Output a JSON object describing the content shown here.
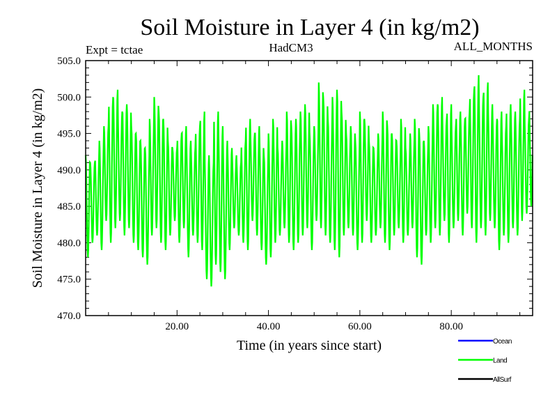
{
  "chart_data": {
    "type": "line",
    "title": "Soil Moisture in Layer 4 (in kg/m2)",
    "subtitle_left": "Expt = tctae",
    "subtitle_center": "HadCM3",
    "subtitle_right": "ALL_MONTHS",
    "xlabel": "Time (in years since start)",
    "ylabel": "Soil Moisture in Layer 4 (in kg/m2)",
    "xlim": [
      0,
      97.8
    ],
    "ylim": [
      470,
      505
    ],
    "x_ticks": [
      20,
      40,
      60,
      80
    ],
    "x_tick_labels": [
      "20.00",
      "40.00",
      "60.00",
      "80.00"
    ],
    "y_ticks": [
      470,
      475,
      480,
      485,
      490,
      495,
      500,
      505
    ],
    "y_tick_labels": [
      "470.0",
      "475.0",
      "480.0",
      "485.0",
      "490.0",
      "495.0",
      "500.0",
      "505.0"
    ],
    "grid": false,
    "legend_placement": "bottom-right",
    "legend": [
      {
        "name": "Ocean",
        "color": "#0000ff"
      },
      {
        "name": "Land",
        "color": "#00ff00"
      },
      {
        "name": "AllSurf",
        "color": "#000000"
      }
    ],
    "series": [
      {
        "name": "Land",
        "color": "#00ff00",
        "description_of_values": "seasonal cycle; annual maxima and minima per model year",
        "annual_max": [
          492,
          491,
          492,
          494,
          496,
          500,
          501,
          498,
          499,
          499,
          496,
          495,
          494,
          493,
          497,
          500,
          498,
          497,
          494,
          493,
          495,
          496,
          494,
          493,
          496,
          498,
          492,
          491,
          498,
          496,
          494,
          493,
          492,
          491,
          494,
          497,
          495,
          496,
          494,
          492,
          495,
          497,
          493,
          494,
          498,
          496,
          497,
          498,
          499,
          495,
          496,
          502,
          500,
          497,
          500,
          501,
          498,
          495,
          496,
          494,
          498,
          497,
          494,
          493,
          495,
          498,
          496,
          495,
          494,
          497,
          493,
          495,
          497,
          495,
          494,
          496,
          499,
          500,
          497,
          499,
          496,
          498,
          497,
          498,
          501,
          503,
          500,
          502,
          499,
          497,
          498,
          496,
          499,
          498,
          497,
          501,
          497,
          499
        ],
        "annual_min": [
          478,
          480,
          481,
          479,
          483,
          480,
          482,
          483,
          481,
          482,
          480,
          479,
          478,
          477,
          481,
          482,
          480,
          479,
          481,
          483,
          480,
          482,
          478,
          481,
          480,
          479,
          475,
          474,
          477,
          476,
          475,
          479,
          482,
          481,
          480,
          479,
          483,
          481,
          479,
          477,
          478,
          480,
          481,
          482,
          480,
          479,
          480,
          481,
          482,
          479,
          483,
          482,
          481,
          480,
          479,
          478,
          481,
          482,
          481,
          479,
          480,
          483,
          480,
          481,
          482,
          480,
          479,
          481,
          482,
          480,
          481,
          482,
          478,
          477,
          481,
          480,
          482,
          481,
          483,
          480,
          482,
          483,
          481,
          484,
          482,
          480,
          482,
          481,
          483,
          482,
          479,
          481,
          480,
          482,
          481,
          483,
          484,
          485
        ]
      }
    ]
  }
}
